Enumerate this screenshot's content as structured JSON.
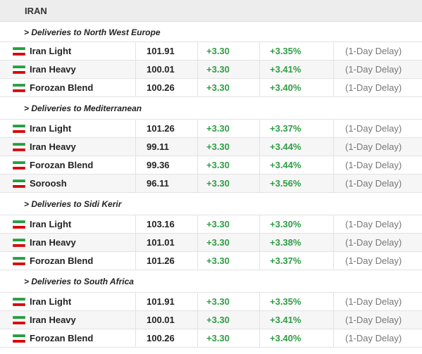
{
  "header": {
    "title": "IRAN"
  },
  "sections": [
    {
      "title": "> Deliveries to North West Europe",
      "rows": [
        [
          "Iran Light",
          "101.91",
          "+3.30",
          "+3.35%",
          "(1-Day Delay)"
        ],
        [
          "Iran Heavy",
          "100.01",
          "+3.30",
          "+3.41%",
          "(1-Day Delay)"
        ],
        [
          "Forozan Blend",
          "100.26",
          "+3.30",
          "+3.40%",
          "(1-Day Delay)"
        ]
      ]
    },
    {
      "title": "> Deliveries to Mediterranean",
      "rows": [
        [
          "Iran Light",
          "101.26",
          "+3.30",
          "+3.37%",
          "(1-Day Delay)"
        ],
        [
          "Iran Heavy",
          "99.11",
          "+3.30",
          "+3.44%",
          "(1-Day Delay)"
        ],
        [
          "Forozan Blend",
          "99.36",
          "+3.30",
          "+3.44%",
          "(1-Day Delay)"
        ],
        [
          "Soroosh",
          "96.11",
          "+3.30",
          "+3.56%",
          "(1-Day Delay)"
        ]
      ]
    },
    {
      "title": "> Deliveries to Sidi Kerir",
      "rows": [
        [
          "Iran Light",
          "103.16",
          "+3.30",
          "+3.30%",
          "(1-Day Delay)"
        ],
        [
          "Iran Heavy",
          "101.01",
          "+3.30",
          "+3.38%",
          "(1-Day Delay)"
        ],
        [
          "Forozan Blend",
          "101.26",
          "+3.30",
          "+3.37%",
          "(1-Day Delay)"
        ]
      ]
    },
    {
      "title": "> Deliveries to South Africa",
      "rows": [
        [
          "Iran Light",
          "101.91",
          "+3.30",
          "+3.35%",
          "(1-Day Delay)"
        ],
        [
          "Iran Heavy",
          "100.01",
          "+3.30",
          "+3.41%",
          "(1-Day Delay)"
        ],
        [
          "Forozan Blend",
          "100.26",
          "+3.30",
          "+3.40%",
          "(1-Day Delay)"
        ]
      ]
    }
  ]
}
